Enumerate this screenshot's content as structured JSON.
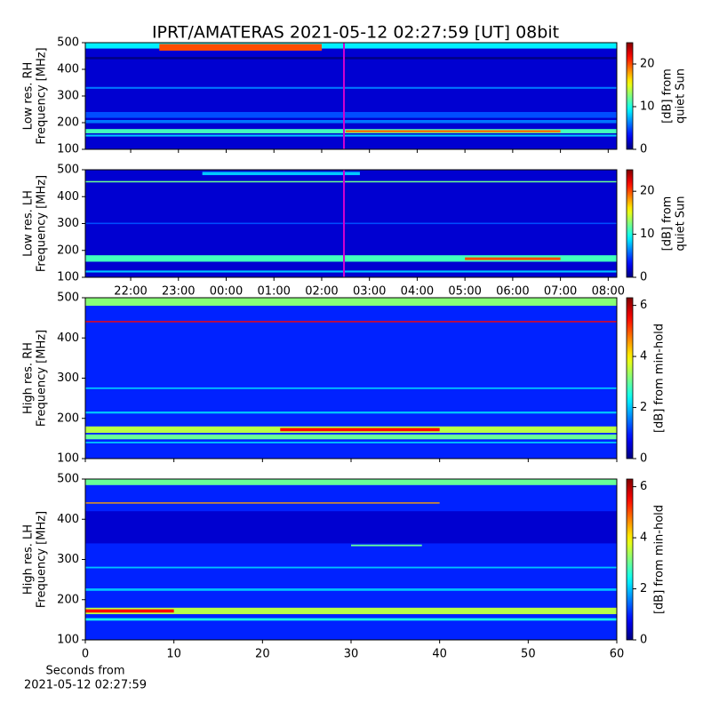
{
  "title": "IPRT/AMATERAS 2021-05-12 02:27:59 [UT]   08bit",
  "xlabel": [
    "Seconds from",
    "2021-05-12 02:27:59"
  ],
  "chart_data": [
    {
      "type": "heatmap",
      "ylabel": [
        "Low res. RH",
        "Frequency [MHz]"
      ],
      "colorbar_label": [
        "[dB] from",
        "quiet Sun"
      ],
      "colormap": "jet",
      "clim": [
        0,
        25
      ],
      "cticks": [
        0,
        10,
        20
      ],
      "xlim": [
        21.05,
        32.18
      ],
      "xticks": [
        22,
        23,
        24,
        25,
        26,
        27,
        28,
        29,
        30,
        31,
        32
      ],
      "show_xticklabels": false,
      "ylim": [
        100,
        500
      ],
      "yticks": [
        100,
        200,
        300,
        400,
        500
      ],
      "cursor_x": 26.466,
      "cursor_color": "#d000d0",
      "background": 2,
      "bands": [
        {
          "y": [
            478,
            500
          ],
          "value": 9
        },
        {
          "y": [
            470,
            495
          ],
          "x": [
            22.6,
            26.0
          ],
          "value": 20
        },
        {
          "y": [
            438,
            446
          ],
          "value": 0
        },
        {
          "y": [
            327,
            334
          ],
          "value": 6
        },
        {
          "y": [
            218,
            240
          ],
          "value": 5
        },
        {
          "y": [
            198,
            210
          ],
          "value": 6
        },
        {
          "y": [
            160,
            176
          ],
          "value": 11
        },
        {
          "y": [
            163,
            172
          ],
          "x": [
            26.5,
            31.0
          ],
          "value": 19
        },
        {
          "y": [
            148,
            155
          ],
          "value": 8
        }
      ]
    },
    {
      "type": "heatmap",
      "ylabel": [
        "Low res. LH",
        "Frequency [MHz]"
      ],
      "colorbar_label": [
        "[dB] from",
        "quiet Sun"
      ],
      "colormap": "jet",
      "clim": [
        0,
        25
      ],
      "cticks": [
        0,
        10,
        20
      ],
      "xlim": [
        21.05,
        32.18
      ],
      "xticks": [
        {
          "value": 22,
          "label": "22:00"
        },
        {
          "value": 23,
          "label": "23:00"
        },
        {
          "value": 24,
          "label": "00:00"
        },
        {
          "value": 25,
          "label": "01:00"
        },
        {
          "value": 26,
          "label": "02:00"
        },
        {
          "value": 27,
          "label": "03:00"
        },
        {
          "value": 28,
          "label": "04:00"
        },
        {
          "value": 29,
          "label": "05:00"
        },
        {
          "value": 30,
          "label": "06:00"
        },
        {
          "value": 31,
          "label": "07:00"
        },
        {
          "value": 32,
          "label": "08:00"
        }
      ],
      "show_xticklabels": true,
      "ylim": [
        100,
        500
      ],
      "yticks": [
        100,
        200,
        300,
        400,
        500
      ],
      "cursor_x": 26.466,
      "cursor_color": "#d000d0",
      "background": 2,
      "bands": [
        {
          "y": [
            480,
            492
          ],
          "x": [
            23.5,
            26.8
          ],
          "value": 8
        },
        {
          "y": [
            453,
            458
          ],
          "value": 12
        },
        {
          "y": [
            298,
            303
          ],
          "value": 5
        },
        {
          "y": [
            158,
            182
          ],
          "value": 11
        },
        {
          "y": [
            164,
            174
          ],
          "x": [
            29.0,
            31.0
          ],
          "value": 20
        },
        {
          "y": [
            118,
            125
          ],
          "value": 8
        }
      ]
    },
    {
      "type": "heatmap",
      "ylabel": [
        "High res. RH",
        "Frequency [MHz]"
      ],
      "colorbar_label": [
        "[dB] from min-hold"
      ],
      "colormap": "jet",
      "clim": [
        0,
        6.3
      ],
      "cticks": [
        0,
        2,
        4,
        6
      ],
      "xlim": [
        0,
        60
      ],
      "xticks": [
        0,
        10,
        20,
        30,
        40,
        50,
        60
      ],
      "show_xticklabels": false,
      "ylim": [
        100,
        500
      ],
      "yticks": [
        100,
        200,
        300,
        400,
        500
      ],
      "background": 1,
      "bands": [
        {
          "y": [
            480,
            500
          ],
          "value": 3.2
        },
        {
          "y": [
            439,
            442
          ],
          "value": 5.5
        },
        {
          "y": [
            273,
            277
          ],
          "value": 2
        },
        {
          "y": [
            212,
            217
          ],
          "value": 2
        },
        {
          "y": [
            164,
            180
          ],
          "value": 3.5
        },
        {
          "y": [
            168,
            176
          ],
          "x": [
            22,
            40
          ],
          "value": 5.5
        },
        {
          "y": [
            148,
            160
          ],
          "value": 3
        },
        {
          "y": [
            138,
            142
          ],
          "value": 2
        }
      ]
    },
    {
      "type": "heatmap",
      "ylabel": [
        "High res. LH",
        "Frequency [MHz]"
      ],
      "colorbar_label": [
        "[dB] from min-hold"
      ],
      "colormap": "jet",
      "clim": [
        0,
        6.3
      ],
      "cticks": [
        0,
        2,
        4,
        6
      ],
      "xlim": [
        0,
        60
      ],
      "xticks": [
        0,
        10,
        20,
        30,
        40,
        50,
        60
      ],
      "show_xticklabels": true,
      "ylim": [
        100,
        500
      ],
      "yticks": [
        100,
        200,
        300,
        400,
        500
      ],
      "background": 1,
      "bands": [
        {
          "y": [
            485,
            500
          ],
          "value": 3
        },
        {
          "y": [
            439,
            442
          ],
          "x": [
            0,
            40
          ],
          "value": 4.5
        },
        {
          "y": [
            340,
            420
          ],
          "value": 0.5
        },
        {
          "y": [
            333,
            337
          ],
          "x": [
            30,
            38
          ],
          "value": 3
        },
        {
          "y": [
            278,
            282
          ],
          "value": 2
        },
        {
          "y": [
            222,
            228
          ],
          "value": 2
        },
        {
          "y": [
            164,
            180
          ],
          "value": 3.5
        },
        {
          "y": [
            168,
            176
          ],
          "x": [
            0,
            10
          ],
          "value": 5.5
        },
        {
          "y": [
            148,
            154
          ],
          "value": 2.5
        }
      ]
    }
  ]
}
